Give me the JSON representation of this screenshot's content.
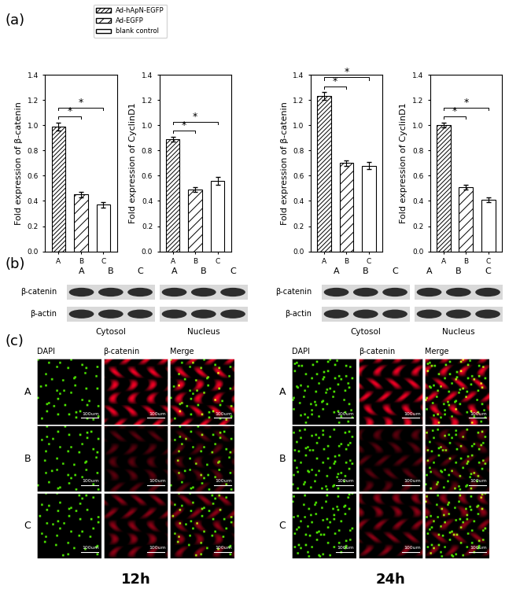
{
  "panel_labels": [
    "(a)",
    "(b)",
    "(c)"
  ],
  "legend_entries": [
    {
      "category": "A",
      "name": "Ad-hApN-EGFP"
    },
    {
      "category": "B",
      "name": "Ad-EGFP"
    },
    {
      "category": "C",
      "name": "blank control"
    }
  ],
  "chart_data": [
    {
      "type": "bar",
      "y_label": "Fold expression of β-catenin",
      "categories": [
        "A",
        "B",
        "C"
      ],
      "values": [
        0.99,
        0.45,
        0.37
      ],
      "errors": [
        0.03,
        0.02,
        0.02
      ],
      "color": "#ffffff",
      "ylim": [
        0.0,
        1.4
      ],
      "yticks": [
        0.0,
        0.2,
        0.4,
        0.6,
        0.8,
        1.0,
        1.2,
        1.4
      ],
      "significance": [
        {
          "from": "A",
          "to": "B",
          "label": "*"
        },
        {
          "from": "A",
          "to": "C",
          "label": "*"
        }
      ]
    },
    {
      "type": "bar",
      "y_label": "Fold expression of CyclinD1",
      "categories": [
        "A",
        "B",
        "C"
      ],
      "values": [
        0.89,
        0.49,
        0.56
      ],
      "errors": [
        0.02,
        0.02,
        0.03
      ],
      "color": "#ffffff",
      "ylim": [
        0.0,
        1.4
      ],
      "yticks": [
        0.0,
        0.2,
        0.4,
        0.6,
        0.8,
        1.0,
        1.2,
        1.4
      ],
      "significance": [
        {
          "from": "A",
          "to": "B",
          "label": "*"
        },
        {
          "from": "A",
          "to": "C",
          "label": "*"
        }
      ]
    },
    {
      "type": "bar",
      "y_label": "Fold expression of β-catenin",
      "categories": [
        "A",
        "B",
        "C"
      ],
      "values": [
        1.23,
        0.7,
        0.68
      ],
      "errors": [
        0.03,
        0.02,
        0.03
      ],
      "color": "#ffffff",
      "ylim": [
        0.0,
        1.4
      ],
      "yticks": [
        0.0,
        0.2,
        0.4,
        0.6,
        0.8,
        1.0,
        1.2,
        1.4
      ],
      "significance": [
        {
          "from": "A",
          "to": "B",
          "label": "*"
        },
        {
          "from": "A",
          "to": "C",
          "label": "*"
        }
      ]
    },
    {
      "type": "bar",
      "y_label": "Fold expression of CyclinD1",
      "categories": [
        "A",
        "B",
        "C"
      ],
      "values": [
        1.0,
        0.51,
        0.41
      ],
      "errors": [
        0.02,
        0.02,
        0.02
      ],
      "color": "#ffffff",
      "ylim": [
        0.0,
        1.4
      ],
      "yticks": [
        0.0,
        0.2,
        0.4,
        0.6,
        0.8,
        1.0,
        1.2,
        1.4
      ],
      "significance": [
        {
          "from": "A",
          "to": "B",
          "label": "*"
        },
        {
          "from": "A",
          "to": "C",
          "label": "*"
        }
      ]
    }
  ],
  "blots": {
    "lanes": [
      "A",
      "B",
      "C"
    ],
    "rows": [
      "β-catenin",
      "β-actin"
    ],
    "fractions": [
      "Cytosol",
      "Nucleus"
    ]
  },
  "images": {
    "rows": [
      "A",
      "B",
      "C"
    ],
    "columns": [
      "DAPI",
      "β-catenin",
      "Merge"
    ],
    "scale_bar": "100um"
  },
  "time_points": [
    "12h",
    "24h"
  ]
}
